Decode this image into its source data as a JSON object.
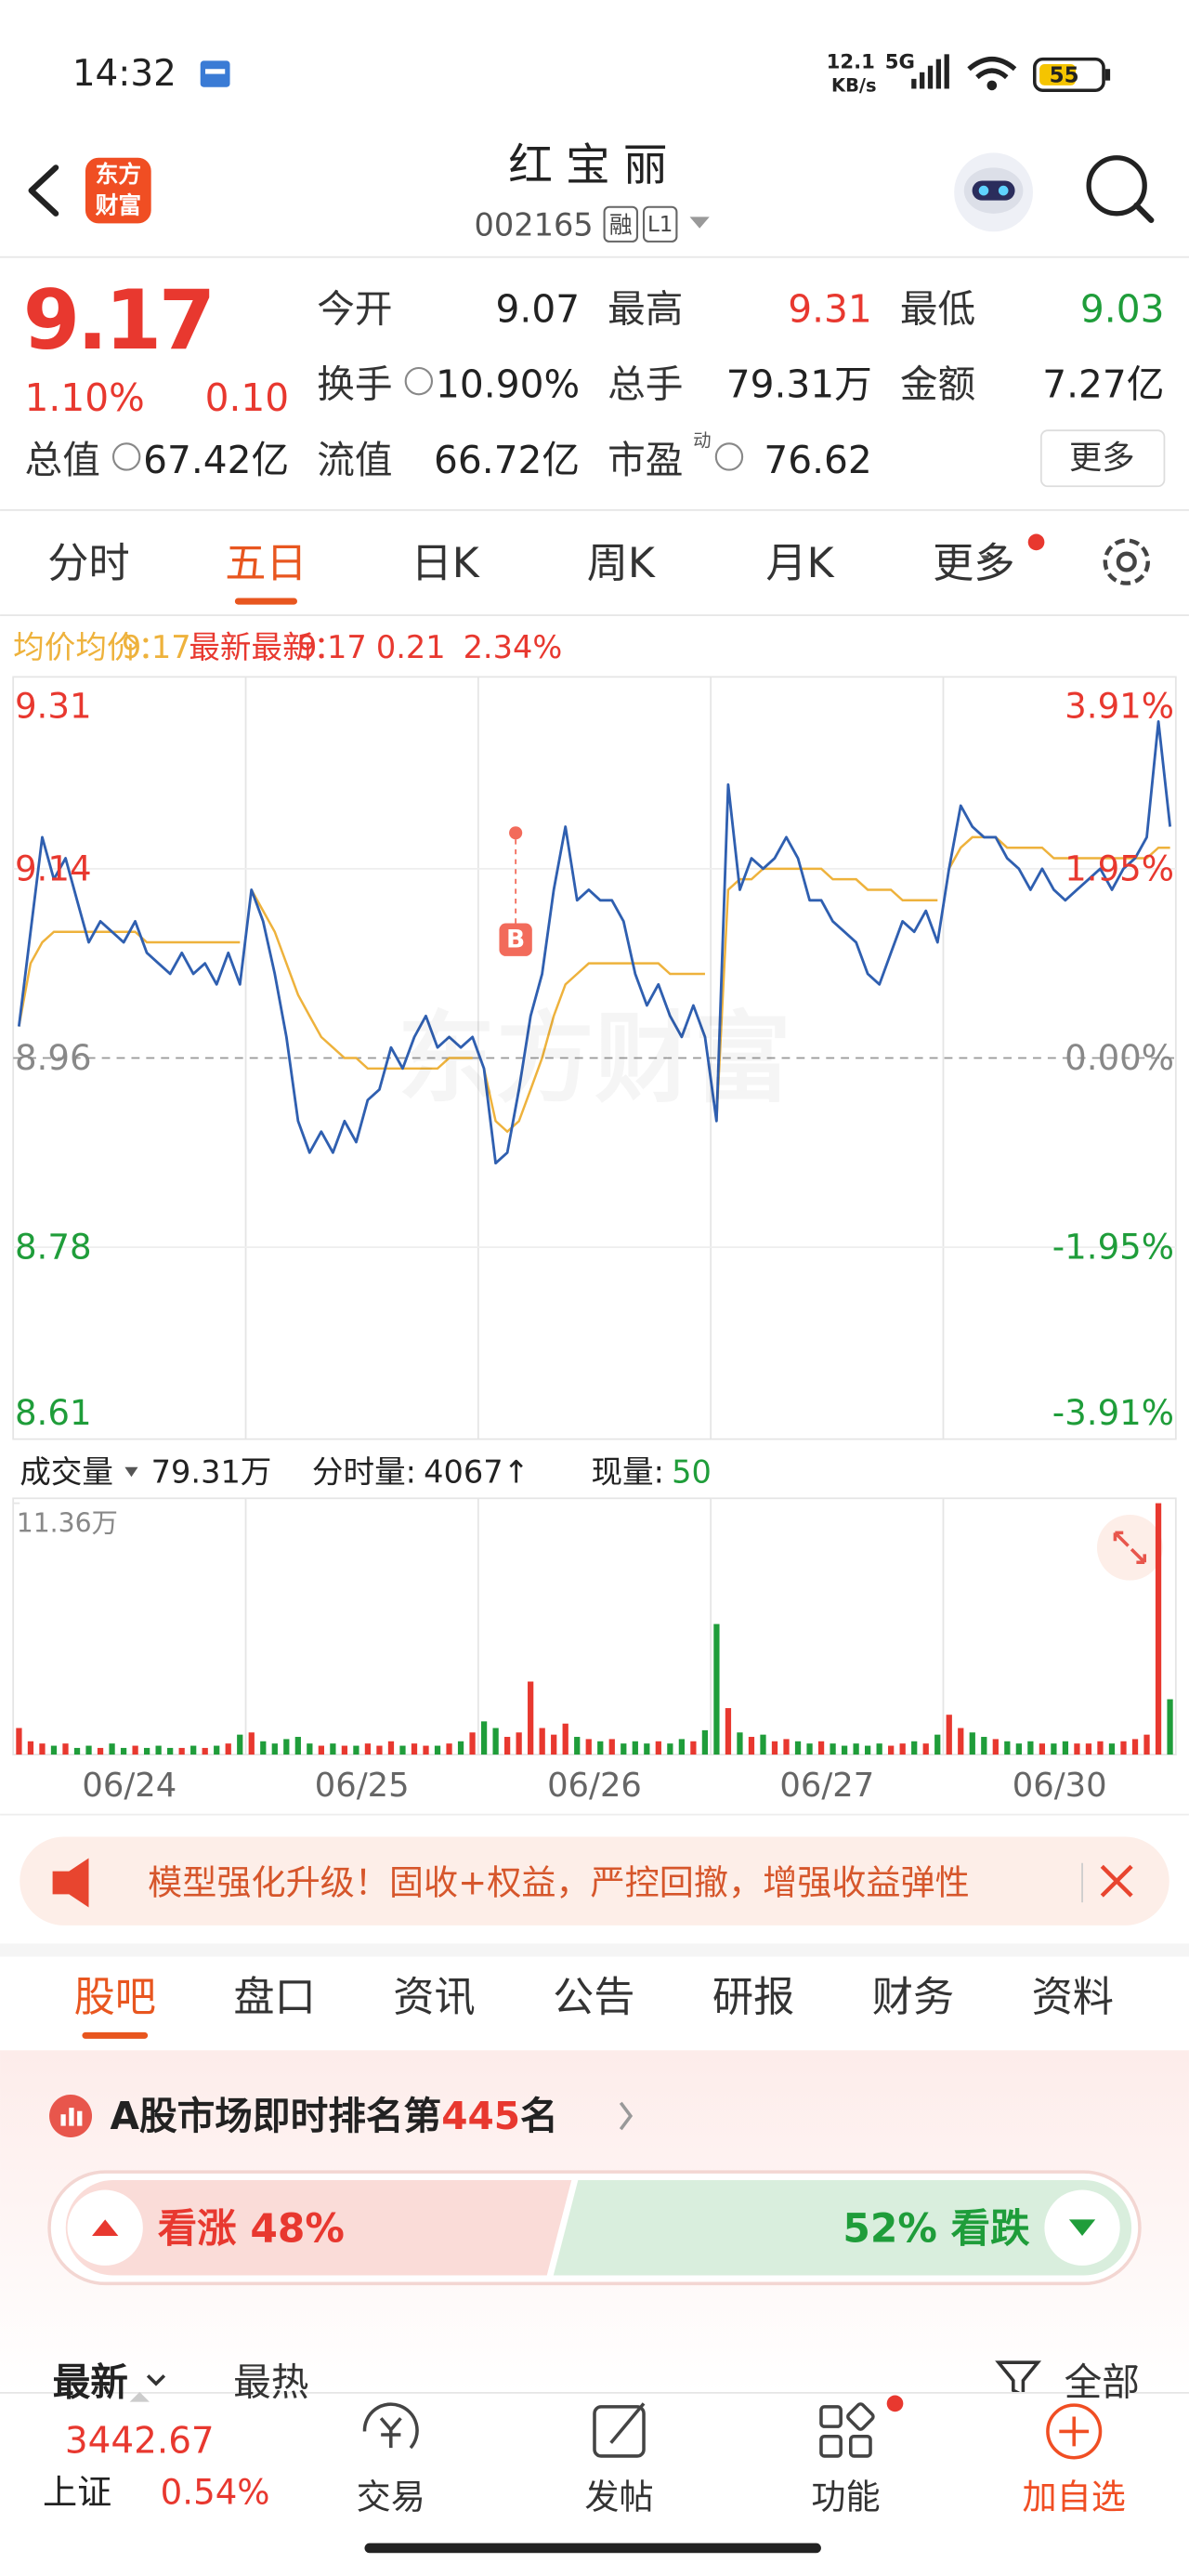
{
  "status_bar": {
    "time": "14:32",
    "net_speed": "12.1",
    "net_unit": "KB/s",
    "network": "5G",
    "battery": "55"
  },
  "header": {
    "logo": [
      "东方",
      "财富"
    ],
    "name": "红宝丽",
    "code": "002165",
    "badges": [
      "融",
      "L1"
    ]
  },
  "quote": {
    "price": "9.17",
    "change_pct": "1.10%",
    "change": "0.10",
    "fields": [
      {
        "label": "今开",
        "value": "9.07",
        "color": "#222222"
      },
      {
        "label": "最高",
        "value": "9.31",
        "color": "#e8382f"
      },
      {
        "label": "最低",
        "value": "9.03",
        "color": "#1f9d3a"
      },
      {
        "label": "换手",
        "value": "10.90%"
      },
      {
        "label": "总手",
        "value": "79.31万"
      },
      {
        "label": "金额",
        "value": "7.27亿"
      },
      {
        "label": "总值",
        "value": "67.42亿"
      },
      {
        "label": "流值",
        "value": "66.72亿"
      },
      {
        "label": "市盈",
        "label_sup": "动",
        "value": "76.62"
      }
    ],
    "more": "更多"
  },
  "period_tabs": {
    "items": [
      "分时",
      "五日",
      "日K",
      "周K",
      "月K",
      "更多"
    ],
    "active": 1
  },
  "chart_data": [
    {
      "type": "line",
      "legend": {
        "avg_label": "均价：",
        "avg": 9.17,
        "latest_label": "最新：",
        "latest": 9.17,
        "change": 0.21,
        "change_pct": {
          "value": 2.34,
          "label": "2.34%"
        }
      },
      "ylim": [
        8.61,
        9.31
      ],
      "yticks": [
        9.31,
        9.14,
        8.96,
        8.78,
        8.61
      ],
      "y2lim": [
        -3.91,
        3.91
      ],
      "y2ticks": [
        {
          "value": 3.91,
          "label": "3.91%"
        },
        {
          "value": 1.95,
          "label": "1.95%"
        },
        {
          "value": 0,
          "label": "0.00%"
        },
        {
          "value": -1.95,
          "label": "-1.95%"
        },
        {
          "value": -3.91,
          "label": "-3.91%"
        }
      ],
      "grid": true,
      "series": [
        {
          "name": "最新",
          "color": "#2f5fb0",
          "values": [
            8.99,
            9.08,
            9.17,
            9.13,
            9.15,
            9.11,
            9.07,
            9.09,
            9.08,
            9.07,
            9.09,
            9.06,
            9.05,
            9.04,
            9.06,
            9.04,
            9.05,
            9.03,
            9.06,
            9.03,
            9.12,
            9.09,
            9.04,
            8.98,
            8.9,
            8.87,
            8.89,
            8.87,
            8.9,
            8.88,
            8.92,
            8.93,
            8.97,
            8.95,
            8.98,
            9.0,
            8.97,
            8.98,
            8.97,
            8.98,
            8.95,
            8.86,
            8.87,
            8.93,
            9.0,
            9.04,
            9.12,
            9.18,
            9.11,
            9.12,
            9.11,
            9.11,
            9.09,
            9.04,
            9.01,
            9.03,
            9.0,
            8.98,
            9.01,
            8.98,
            8.9,
            9.22,
            9.12,
            9.15,
            9.14,
            9.15,
            9.17,
            9.15,
            9.11,
            9.11,
            9.09,
            9.08,
            9.07,
            9.04,
            9.03,
            9.06,
            9.09,
            9.08,
            9.1,
            9.07,
            9.14,
            9.2,
            9.18,
            9.17,
            9.17,
            9.15,
            9.14,
            9.12,
            9.14,
            9.12,
            9.11,
            9.12,
            9.13,
            9.14,
            9.12,
            9.14,
            9.15,
            9.17,
            9.28,
            9.18
          ]
        },
        {
          "name": "均价",
          "color": "#eeb23c",
          "values": [
            8.99,
            9.05,
            9.07,
            9.08,
            9.08,
            9.08,
            9.08,
            9.08,
            9.08,
            9.08,
            9.08,
            9.07,
            9.07,
            9.07,
            9.07,
            9.07,
            9.07,
            9.07,
            9.07,
            9.07,
            9.12,
            9.1,
            9.08,
            9.05,
            9.02,
            9.0,
            8.98,
            8.97,
            8.96,
            8.96,
            8.95,
            8.95,
            8.95,
            8.95,
            8.95,
            8.95,
            8.95,
            8.96,
            8.96,
            8.96,
            8.95,
            8.9,
            8.89,
            8.9,
            8.93,
            8.96,
            9.0,
            9.03,
            9.04,
            9.05,
            9.05,
            9.05,
            9.05,
            9.05,
            9.05,
            9.05,
            9.04,
            9.04,
            9.04,
            9.04,
            8.9,
            9.12,
            9.13,
            9.13,
            9.14,
            9.14,
            9.14,
            9.14,
            9.14,
            9.14,
            9.13,
            9.13,
            9.13,
            9.12,
            9.12,
            9.12,
            9.11,
            9.11,
            9.11,
            9.11,
            9.14,
            9.16,
            9.17,
            9.17,
            9.17,
            9.16,
            9.16,
            9.16,
            9.16,
            9.15,
            9.15,
            9.15,
            9.15,
            9.15,
            9.15,
            9.15,
            9.15,
            9.15,
            9.16,
            9.16
          ]
        }
      ]
    },
    {
      "type": "bar",
      "title": "成交量",
      "total": "79.31万",
      "interval_label": "分时量:",
      "interval": "4067↑",
      "current_label": "现量:",
      "current": 50,
      "day_labels": [
        "06/24",
        "06/25",
        "06/26",
        "06/27",
        "06/30"
      ],
      "ylim": [
        0,
        11.36
      ],
      "yticks": [
        {
          "value": 11.36,
          "label": "11.36万"
        }
      ],
      "values": [
        1.2,
        0.6,
        0.5,
        0.4,
        0.5,
        0.3,
        0.4,
        0.3,
        0.5,
        0.3,
        0.4,
        0.3,
        0.4,
        0.3,
        0.3,
        0.4,
        0.3,
        0.4,
        0.5,
        0.9,
        1.0,
        0.6,
        0.5,
        0.7,
        0.8,
        0.5,
        0.4,
        0.5,
        0.4,
        0.4,
        0.5,
        0.4,
        0.6,
        0.4,
        0.5,
        0.4,
        0.4,
        0.5,
        0.6,
        1.0,
        1.5,
        1.2,
        0.8,
        1.0,
        3.3,
        1.2,
        0.9,
        1.4,
        0.8,
        0.7,
        0.6,
        0.7,
        0.5,
        0.6,
        0.5,
        0.6,
        0.5,
        0.7,
        0.6,
        1.1,
        5.9,
        2.1,
        1.0,
        0.8,
        0.9,
        0.6,
        0.7,
        0.6,
        0.5,
        0.6,
        0.5,
        0.4,
        0.5,
        0.4,
        0.5,
        0.4,
        0.5,
        0.6,
        0.5,
        0.9,
        1.8,
        1.2,
        1.0,
        0.8,
        0.7,
        0.6,
        0.5,
        0.6,
        0.5,
        0.5,
        0.6,
        0.5,
        0.5,
        0.6,
        0.5,
        0.6,
        0.7,
        0.9,
        11.36,
        2.5
      ]
    }
  ],
  "watermark": "东方财富",
  "trade_marker": "B",
  "banner": {
    "text": "模型强化升级！固收+权益，严控回撤，增强收益弹性"
  },
  "info_tabs": {
    "items": [
      "股吧",
      "盘口",
      "资讯",
      "公告",
      "研报",
      "财务",
      "资料"
    ],
    "active": 0
  },
  "rank": {
    "prefix": "A股市场即时排名第",
    "rank": "445",
    "suffix": "名"
  },
  "sentiment": {
    "bull": "看涨 48%",
    "bear": "52% 看跌"
  },
  "sort": {
    "items": [
      "最新",
      "最热"
    ],
    "filter": "全部"
  },
  "bottom_nav": {
    "index_value": "3442.67",
    "index_name": "上证",
    "index_change": "0.54%",
    "items": [
      "交易",
      "发帖",
      "功能",
      "加自选"
    ]
  }
}
